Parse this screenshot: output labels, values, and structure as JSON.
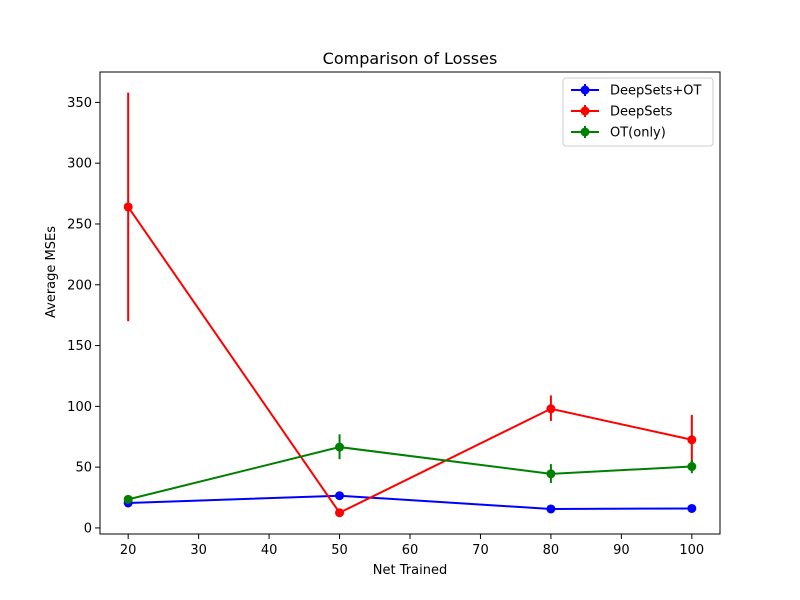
{
  "chart_data": {
    "type": "line",
    "title": "Comparison of Losses",
    "xlabel": "Net Trained",
    "ylabel": "Average MSEs",
    "xlim": [
      16,
      104
    ],
    "ylim": [
      -5,
      375
    ],
    "xticks": [
      20,
      30,
      40,
      50,
      60,
      70,
      80,
      90,
      100
    ],
    "yticks": [
      0,
      50,
      100,
      150,
      200,
      250,
      300,
      350
    ],
    "grid": false,
    "legend_position": "top-right",
    "x": [
      20,
      50,
      80,
      100
    ],
    "series": [
      {
        "name": "DeepSets+OT",
        "color": "#0000ff",
        "values": [
          20.5,
          26.5,
          15.6,
          16.0
        ],
        "err_low": [
          18.8,
          24.5,
          14.2,
          14.5
        ],
        "err_high": [
          22.2,
          28.5,
          17.0,
          17.5
        ]
      },
      {
        "name": "DeepSets",
        "color": "#ff0000",
        "values": [
          264,
          12.5,
          98,
          72.5
        ],
        "err_low": [
          170,
          9.5,
          88,
          53
        ],
        "err_high": [
          358,
          15.5,
          109,
          93
        ]
      },
      {
        "name": "OT(only)",
        "color": "#008000",
        "values": [
          23.5,
          66.5,
          44.5,
          50.5
        ],
        "err_low": [
          21,
          56.5,
          37,
          45
        ],
        "err_high": [
          26,
          77,
          52.5,
          56
        ]
      }
    ]
  }
}
